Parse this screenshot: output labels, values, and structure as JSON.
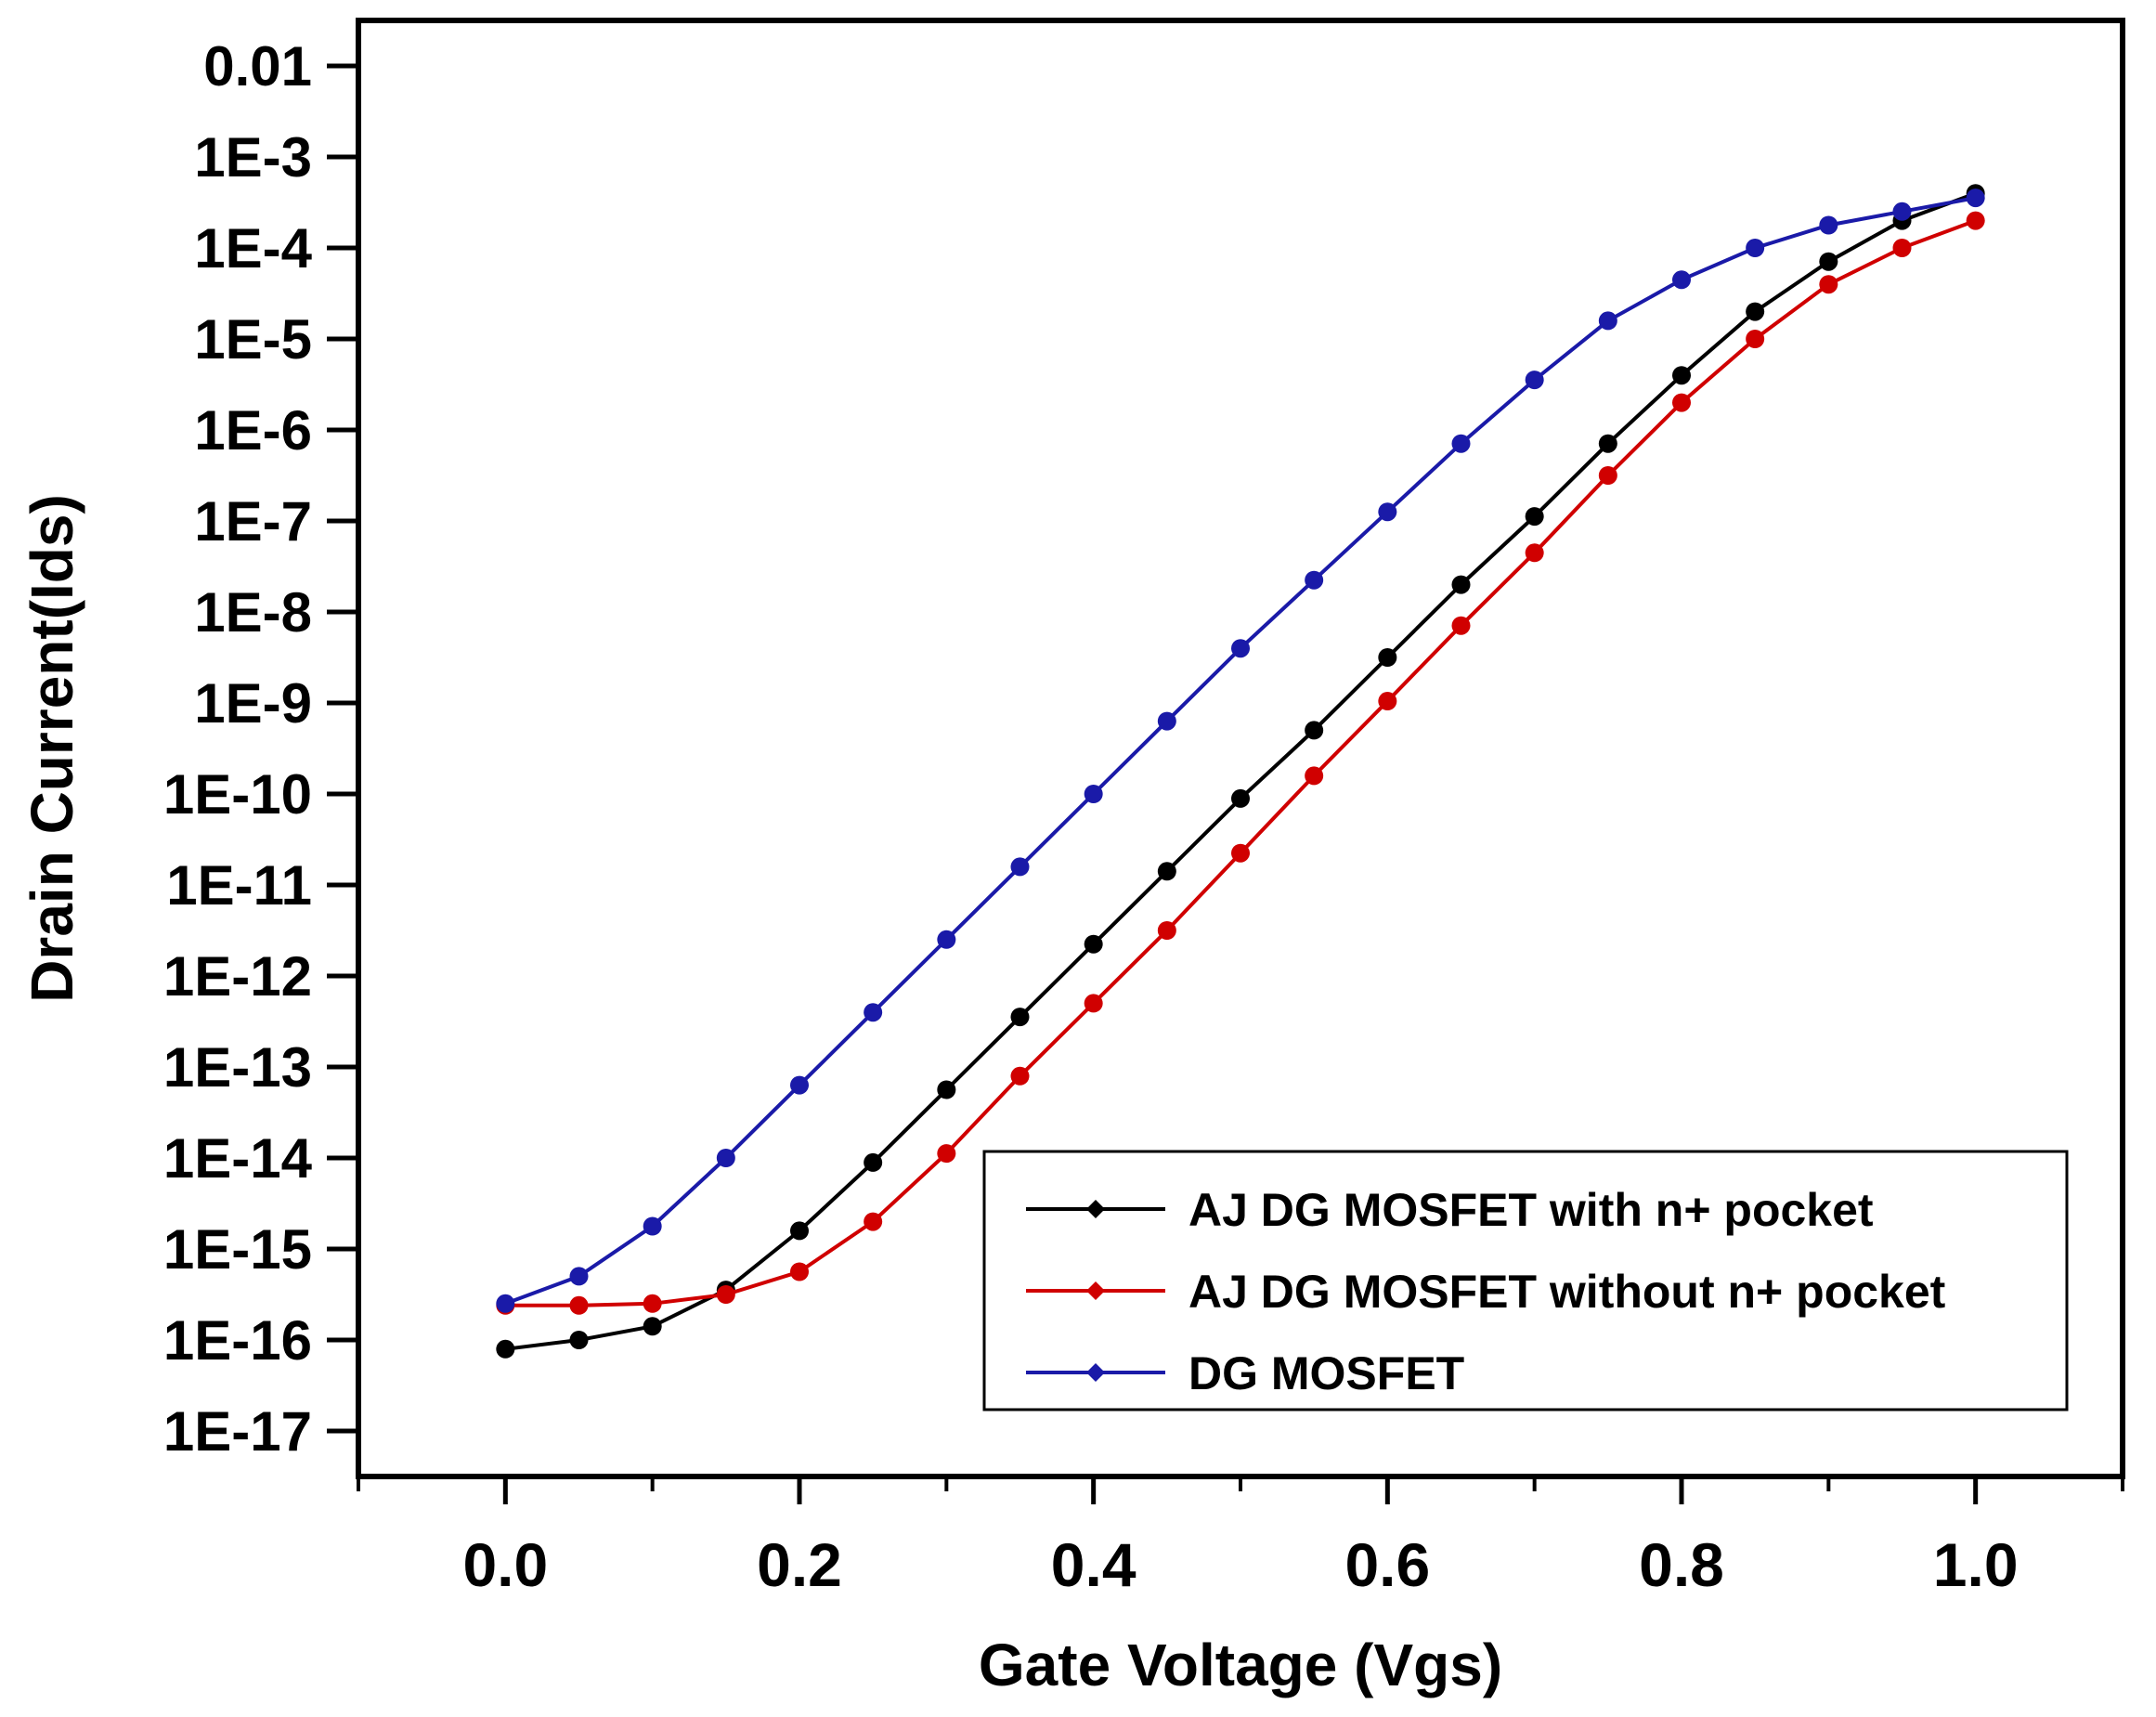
{
  "chart_data": {
    "type": "line",
    "title": "",
    "xlabel": "Gate Voltage (Vgs)",
    "ylabel": "Drain Current(Ids)",
    "xlim": [
      -0.1,
      1.1
    ],
    "yscale": "log",
    "ylim_log10": [
      -17.5,
      -1.5
    ],
    "grid": false,
    "legend_position": "lower-right",
    "x_ticks": [
      "0.0",
      "0.2",
      "0.4",
      "0.6",
      "0.8",
      "1.0"
    ],
    "x_tick_values": [
      0.0,
      0.2,
      0.4,
      0.6,
      0.8,
      1.0
    ],
    "y_ticks": [
      "0.01",
      "1E-3",
      "1E-4",
      "1E-5",
      "1E-6",
      "1E-7",
      "1E-8",
      "1E-9",
      "1E-10",
      "1E-11",
      "1E-12",
      "1E-13",
      "1E-14",
      "1E-15",
      "1E-16",
      "1E-17"
    ],
    "y_tick_exponents": [
      -2,
      -3,
      -4,
      -5,
      -6,
      -7,
      -8,
      -9,
      -10,
      -11,
      -12,
      -13,
      -14,
      -15,
      -16,
      -17
    ],
    "x": [
      0.0,
      0.05,
      0.1,
      0.15,
      0.2,
      0.25,
      0.3,
      0.35,
      0.4,
      0.45,
      0.5,
      0.55,
      0.6,
      0.65,
      0.7,
      0.75,
      0.8,
      0.85,
      0.9,
      0.95,
      1.0
    ],
    "series": [
      {
        "name": "AJ DG MOSFET with n+ pocket",
        "color": "#000000",
        "log10_values": [
          -16.1,
          -16.0,
          -15.85,
          -15.45,
          -14.8,
          -14.05,
          -13.25,
          -12.45,
          -11.65,
          -10.85,
          -10.05,
          -9.3,
          -8.5,
          -7.7,
          -6.95,
          -6.15,
          -5.4,
          -4.7,
          -4.15,
          -3.7,
          -3.4
        ]
      },
      {
        "name": "AJ DG MOSFET without n+ pocket",
        "color": "#d00000",
        "log10_values": [
          -15.62,
          -15.62,
          -15.6,
          -15.5,
          -15.25,
          -14.7,
          -13.95,
          -13.1,
          -12.3,
          -11.5,
          -10.65,
          -9.8,
          -8.98,
          -8.15,
          -7.35,
          -6.5,
          -5.7,
          -5.0,
          -4.4,
          -4.0,
          -3.7
        ]
      },
      {
        "name": "DG MOSFET",
        "color": "#1a1aa8",
        "log10_values": [
          -15.6,
          -15.3,
          -14.75,
          -14.0,
          -13.2,
          -12.4,
          -11.6,
          -10.8,
          -10.0,
          -9.2,
          -8.4,
          -7.65,
          -6.9,
          -6.15,
          -5.45,
          -4.8,
          -4.35,
          -4.0,
          -3.75,
          -3.6,
          -3.45
        ]
      }
    ]
  }
}
